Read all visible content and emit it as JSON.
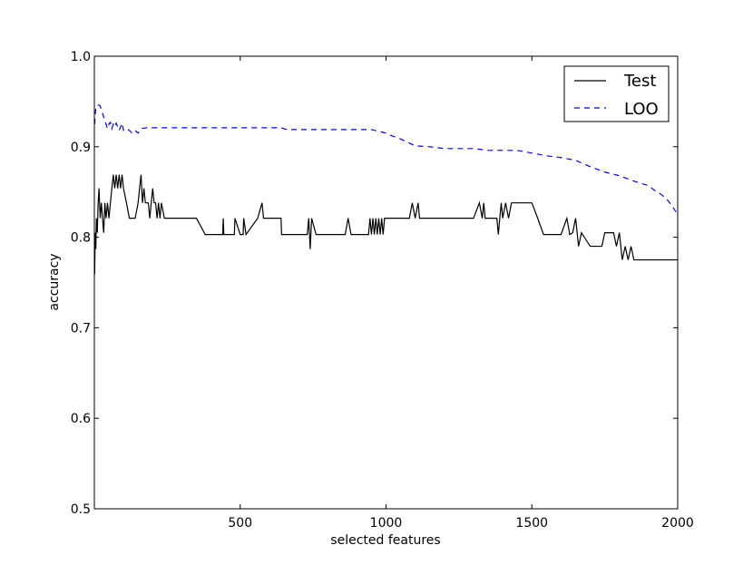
{
  "chart_data": {
    "type": "line",
    "xlabel": "selected features",
    "ylabel": "accuracy",
    "xlim": [
      0,
      2000
    ],
    "ylim": [
      0.5,
      1.0
    ],
    "x_ticks": [
      500,
      1000,
      1500,
      2000
    ],
    "x_tick_labels": [
      "500",
      "1000",
      "1500",
      "2000"
    ],
    "y_ticks": [
      0.5,
      0.6,
      0.7,
      0.8,
      0.9,
      1.0
    ],
    "y_tick_labels": [
      "0.5",
      "0.6",
      "0.7",
      "0.8",
      "0.9",
      "1.0"
    ],
    "grid": false,
    "legend_position": "top-right",
    "series": [
      {
        "name": "Test",
        "color": "#000000",
        "style": "solid",
        "x": [
          1,
          3,
          5,
          7,
          10,
          13,
          16,
          20,
          24,
          28,
          32,
          36,
          40,
          45,
          50,
          55,
          60,
          65,
          70,
          75,
          80,
          85,
          90,
          95,
          100,
          110,
          120,
          130,
          140,
          150,
          155,
          160,
          165,
          170,
          175,
          180,
          185,
          190,
          195,
          200,
          205,
          210,
          215,
          220,
          225,
          230,
          240,
          260,
          300,
          350,
          380,
          382,
          400,
          440,
          442,
          444,
          480,
          482,
          500,
          510,
          512,
          520,
          560,
          575,
          580,
          585,
          590,
          600,
          640,
          642,
          700,
          720,
          730,
          735,
          740,
          745,
          760,
          800,
          860,
          870,
          880,
          900,
          920,
          940,
          945,
          950,
          955,
          960,
          965,
          970,
          975,
          980,
          985,
          990,
          995,
          1000,
          1050,
          1080,
          1090,
          1100,
          1110,
          1115,
          1200,
          1250,
          1300,
          1320,
          1330,
          1335,
          1340,
          1380,
          1385,
          1390,
          1395,
          1400,
          1410,
          1420,
          1430,
          1450,
          1470,
          1490,
          1500,
          1520,
          1540,
          1560,
          1580,
          1600,
          1620,
          1630,
          1640,
          1650,
          1660,
          1670,
          1700,
          1740,
          1750,
          1780,
          1790,
          1800,
          1810,
          1820,
          1830,
          1840,
          1850,
          1900,
          1950,
          2000
        ],
        "y": [
          0.759,
          0.805,
          0.787,
          0.821,
          0.805,
          0.838,
          0.854,
          0.821,
          0.838,
          0.821,
          0.805,
          0.838,
          0.821,
          0.838,
          0.821,
          0.838,
          0.854,
          0.869,
          0.854,
          0.869,
          0.854,
          0.869,
          0.854,
          0.869,
          0.854,
          0.838,
          0.821,
          0.821,
          0.821,
          0.838,
          0.854,
          0.869,
          0.838,
          0.854,
          0.838,
          0.838,
          0.838,
          0.821,
          0.838,
          0.854,
          0.838,
          0.838,
          0.821,
          0.838,
          0.821,
          0.838,
          0.821,
          0.821,
          0.821,
          0.821,
          0.803,
          0.803,
          0.803,
          0.803,
          0.821,
          0.803,
          0.803,
          0.821,
          0.803,
          0.803,
          0.821,
          0.803,
          0.821,
          0.838,
          0.821,
          0.821,
          0.821,
          0.821,
          0.821,
          0.803,
          0.803,
          0.803,
          0.803,
          0.821,
          0.787,
          0.821,
          0.803,
          0.803,
          0.803,
          0.821,
          0.803,
          0.803,
          0.803,
          0.803,
          0.821,
          0.803,
          0.821,
          0.803,
          0.821,
          0.803,
          0.821,
          0.803,
          0.821,
          0.803,
          0.821,
          0.821,
          0.821,
          0.821,
          0.838,
          0.821,
          0.838,
          0.821,
          0.821,
          0.821,
          0.821,
          0.838,
          0.821,
          0.838,
          0.821,
          0.821,
          0.803,
          0.821,
          0.838,
          0.821,
          0.838,
          0.821,
          0.838,
          0.838,
          0.838,
          0.838,
          0.838,
          0.821,
          0.803,
          0.803,
          0.803,
          0.803,
          0.821,
          0.803,
          0.805,
          0.821,
          0.79,
          0.805,
          0.79,
          0.79,
          0.805,
          0.805,
          0.79,
          0.805,
          0.775,
          0.79,
          0.775,
          0.79,
          0.775,
          0.775,
          0.775,
          0.775
        ]
      },
      {
        "name": "LOO",
        "color": "#0000ff",
        "style": "dashed",
        "x": [
          1,
          5,
          10,
          15,
          20,
          25,
          30,
          35,
          40,
          45,
          50,
          55,
          60,
          65,
          70,
          75,
          80,
          85,
          90,
          95,
          100,
          110,
          120,
          130,
          140,
          150,
          160,
          180,
          200,
          250,
          300,
          400,
          500,
          600,
          640,
          660,
          700,
          750,
          800,
          850,
          900,
          950,
          1000,
          1020,
          1040,
          1060,
          1080,
          1100,
          1150,
          1200,
          1250,
          1300,
          1350,
          1400,
          1450,
          1500,
          1550,
          1600,
          1650,
          1700,
          1750,
          1800,
          1850,
          1900,
          1920,
          1940,
          1960,
          1980,
          2000
        ],
        "y": [
          0.925,
          0.943,
          0.946,
          0.946,
          0.945,
          0.94,
          0.935,
          0.93,
          0.925,
          0.92,
          0.925,
          0.927,
          0.92,
          0.925,
          0.922,
          0.926,
          0.922,
          0.918,
          0.922,
          0.926,
          0.918,
          0.92,
          0.918,
          0.915,
          0.918,
          0.915,
          0.92,
          0.921,
          0.921,
          0.921,
          0.921,
          0.921,
          0.921,
          0.921,
          0.921,
          0.919,
          0.919,
          0.919,
          0.919,
          0.919,
          0.919,
          0.919,
          0.915,
          0.912,
          0.91,
          0.907,
          0.904,
          0.901,
          0.9,
          0.898,
          0.898,
          0.898,
          0.896,
          0.896,
          0.896,
          0.893,
          0.89,
          0.888,
          0.885,
          0.878,
          0.872,
          0.868,
          0.862,
          0.857,
          0.852,
          0.848,
          0.843,
          0.835,
          0.825
        ]
      }
    ]
  }
}
